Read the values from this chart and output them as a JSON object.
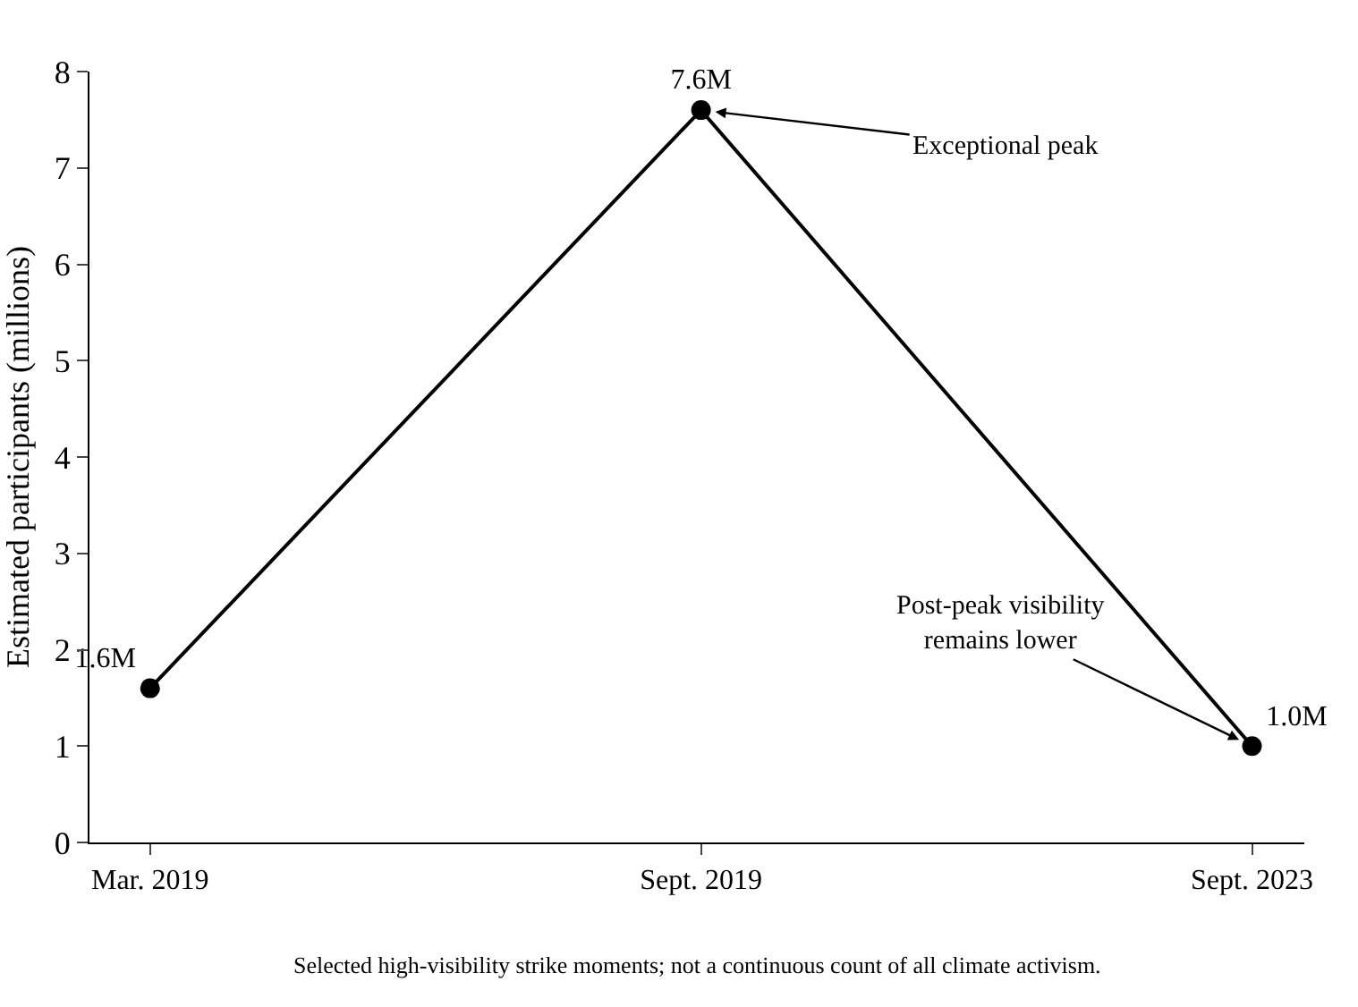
{
  "chart_data": {
    "type": "line",
    "ylabel": "Estimated participants (millions)",
    "categories": [
      "Mar. 2019",
      "Sept. 2019",
      "Sept. 2023"
    ],
    "values": [
      1.6,
      7.6,
      1.0
    ],
    "value_labels": [
      "1.6M",
      "7.6M",
      "1.0M"
    ],
    "color": "#000000",
    "marker": "circle",
    "line_style": "solid",
    "ylim": [
      0,
      8
    ],
    "yticks": [
      0,
      1,
      2,
      3,
      4,
      5,
      6,
      7,
      8
    ],
    "annotations": [
      {
        "text": "Exceptional peak",
        "x": "Sept. 2019",
        "y": 7.6
      },
      {
        "text": "Post-peak visibility\nremains lower",
        "x": "Sept. 2023",
        "y": 1.0
      },
      "Selected high-visibility strike moments; not a continuous count of all climate activism."
    ]
  }
}
